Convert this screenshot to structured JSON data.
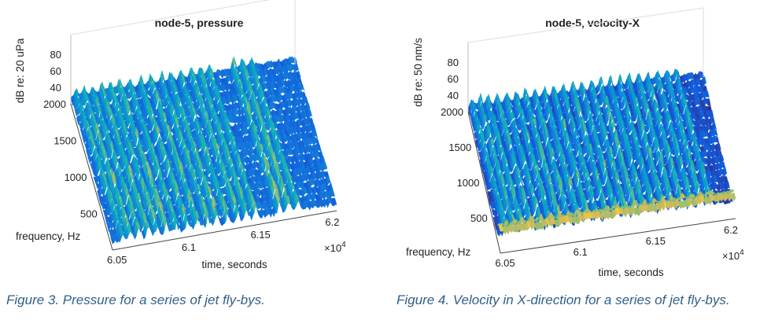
{
  "figures": [
    {
      "caption": "Figure 3. Pressure for a series of jet fly-bys.",
      "chart_data": {
        "type": "surface",
        "title": "node-5, pressure",
        "xlabel": "time, seconds",
        "ylabel": "frequency, Hz",
        "zlabel": "dB re: 20 uPa",
        "x_ticks": [
          "6.05",
          "6.1",
          "6.15",
          "6.2"
        ],
        "x_exponent_base": "×10",
        "x_exponent": "4",
        "y_ticks": [
          "500",
          "1000",
          "1500",
          "2000"
        ],
        "z_ticks": [
          "40",
          "60",
          "80"
        ],
        "xlim": [
          60500,
          62000
        ],
        "ylim": [
          0,
          2000
        ],
        "zlim": [
          30,
          80
        ],
        "colormap": "parula",
        "event_times": [
          60570,
          60620,
          60680,
          60740,
          60800,
          60860,
          60930,
          61000,
          61070,
          61140,
          61200,
          61270,
          61340,
          61400,
          61460,
          61620,
          61680,
          61740
        ],
        "event_peak_db": [
          62,
          65,
          63,
          66,
          64,
          67,
          62,
          65,
          66,
          63,
          64,
          62,
          65,
          63,
          61,
          67,
          66,
          62
        ],
        "background_db": 42
      }
    },
    {
      "caption": "Figure 4. Velocity in X-direction for a series of jet fly-bys.",
      "chart_data": {
        "type": "surface",
        "title": "node-5, velocity-X",
        "xlabel": "time, seconds",
        "ylabel": "frequency, Hz",
        "zlabel": "dB re: 50 nm/s",
        "x_ticks": [
          "6.05",
          "6.1",
          "6.15",
          "6.2"
        ],
        "x_exponent_base": "×10",
        "x_exponent": "4",
        "y_ticks": [
          "500",
          "1000",
          "1500",
          "2000"
        ],
        "z_ticks": [
          "40",
          "60",
          "80"
        ],
        "xlim": [
          60500,
          62000
        ],
        "ylim": [
          0,
          2000
        ],
        "zlim": [
          30,
          80
        ],
        "colormap": "parula",
        "event_times": [
          60560,
          60610,
          60660,
          60720,
          60780,
          60840,
          60900,
          60960,
          61020,
          61080,
          61140,
          61200,
          61260,
          61320,
          61380,
          61440,
          61500,
          61560,
          61620,
          61680,
          61740,
          61800,
          61860
        ],
        "event_peak_db": [
          60,
          63,
          62,
          64,
          61,
          63,
          65,
          62,
          64,
          63,
          61,
          64,
          62,
          63,
          65,
          62,
          61,
          64,
          63,
          62,
          60,
          61,
          60
        ],
        "background_db": 38,
        "low_freq_band_db": 66
      }
    }
  ]
}
